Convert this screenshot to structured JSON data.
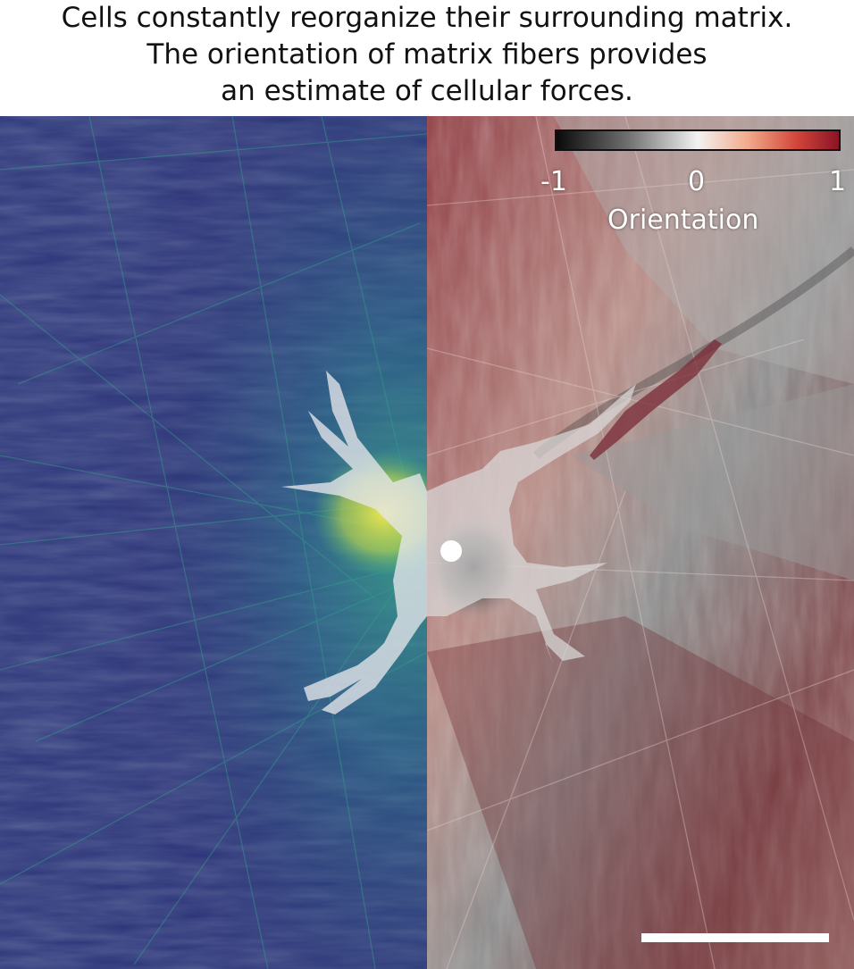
{
  "caption": {
    "lines": [
      "Cells constantly reorganize their surrounding matrix.",
      "The orientation of matrix fibers provides",
      "an estimate of cellular forces."
    ]
  },
  "colorbar": {
    "label": "Orientation",
    "tick_labels": [
      "-1",
      "0",
      "1"
    ],
    "min": -1,
    "max": 1,
    "colors": [
      "#0a0a0a",
      "#f2f2f2",
      "#8c1326"
    ]
  },
  "panels": {
    "left_colormap": "viridis",
    "right_colormap": "gray-to-red"
  }
}
